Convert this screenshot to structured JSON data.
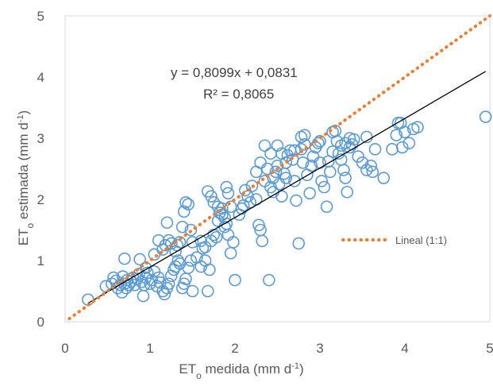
{
  "chart_data": {
    "type": "scatter",
    "xlabel": {
      "main": "ET",
      "sub": "o",
      "rest": " medida (mm d",
      "sup": "-1",
      "close": ")"
    },
    "ylabel": {
      "main": "ET",
      "sub": "o",
      "rest": " estimada (mm d",
      "sup": "-1",
      "close": ")"
    },
    "xlim": [
      0,
      5
    ],
    "ylim": [
      0,
      5
    ],
    "xticks": [
      "0",
      "1",
      "2",
      "3",
      "4",
      "5"
    ],
    "yticks": [
      "0",
      "1",
      "2",
      "3",
      "4",
      "5"
    ],
    "grid": false,
    "marker_color": "#5b9bd5",
    "trendline": {
      "slope": 0.8099,
      "intercept": 0.0831,
      "color": "#000000",
      "equation": "y = 0,8099x + 0,0831",
      "r2": "R² = 0,8065"
    },
    "reference_line": {
      "name": "Lineal (1:1)",
      "slope": 1,
      "intercept": 0,
      "color": "#ed7d31"
    },
    "legend_placement": "center-right",
    "points": [
      [
        0.27,
        0.36
      ],
      [
        0.48,
        0.58
      ],
      [
        0.55,
        0.62
      ],
      [
        0.57,
        0.72
      ],
      [
        0.6,
        0.67
      ],
      [
        0.62,
        0.55
      ],
      [
        0.65,
        0.6
      ],
      [
        0.67,
        0.48
      ],
      [
        0.68,
        0.74
      ],
      [
        0.7,
        0.62
      ],
      [
        0.72,
        0.55
      ],
      [
        0.73,
        0.68
      ],
      [
        0.75,
        0.6
      ],
      [
        0.78,
        0.66
      ],
      [
        0.8,
        0.72
      ],
      [
        0.82,
        0.6
      ],
      [
        0.85,
        0.7
      ],
      [
        0.87,
        0.78
      ],
      [
        0.9,
        0.65
      ],
      [
        0.92,
        0.42
      ],
      [
        0.93,
        0.6
      ],
      [
        0.95,
        0.72
      ],
      [
        0.97,
        0.8
      ],
      [
        1.0,
        0.62
      ],
      [
        1.02,
        0.68
      ],
      [
        1.05,
        0.82
      ],
      [
        1.08,
        0.58
      ],
      [
        1.1,
        0.72
      ],
      [
        1.12,
        0.64
      ],
      [
        1.15,
        0.5
      ],
      [
        1.17,
        0.45
      ],
      [
        1.2,
        0.55
      ],
      [
        1.22,
        0.62
      ],
      [
        1.25,
        0.75
      ],
      [
        1.28,
        0.85
      ],
      [
        1.3,
        0.9
      ],
      [
        1.33,
        1.0
      ],
      [
        1.35,
        0.95
      ],
      [
        1.38,
        0.55
      ],
      [
        1.4,
        0.62
      ],
      [
        1.42,
        0.7
      ],
      [
        1.45,
        0.88
      ],
      [
        1.48,
        1.0
      ],
      [
        1.5,
        0.5
      ],
      [
        0.7,
        1.03
      ],
      [
        0.88,
        1.02
      ],
      [
        0.95,
        0.88
      ],
      [
        1.05,
        1.1
      ],
      [
        1.1,
        1.33
      ],
      [
        1.15,
        1.18
      ],
      [
        1.18,
        1.25
      ],
      [
        1.2,
        1.62
      ],
      [
        1.22,
        1.33
      ],
      [
        1.25,
        1.28
      ],
      [
        1.3,
        1.15
      ],
      [
        1.32,
        1.25
      ],
      [
        1.35,
        1.3
      ],
      [
        1.38,
        1.55
      ],
      [
        1.4,
        1.8
      ],
      [
        1.42,
        1.95
      ],
      [
        1.45,
        1.92
      ],
      [
        1.48,
        1.5
      ],
      [
        1.5,
        1.3
      ],
      [
        1.55,
        1.05
      ],
      [
        1.6,
        0.9
      ],
      [
        1.62,
        1.2
      ],
      [
        1.65,
        1.0
      ],
      [
        1.68,
        0.5
      ],
      [
        1.7,
        0.85
      ],
      [
        1.72,
        1.32
      ],
      [
        1.75,
        1.42
      ],
      [
        1.78,
        1.38
      ],
      [
        1.8,
        1.65
      ],
      [
        1.82,
        1.78
      ],
      [
        1.85,
        1.85
      ],
      [
        1.88,
        1.7
      ],
      [
        1.9,
        1.6
      ],
      [
        1.92,
        1.42
      ],
      [
        1.95,
        1.12
      ],
      [
        1.98,
        1.3
      ],
      [
        1.6,
        1.32
      ],
      [
        1.65,
        1.22
      ],
      [
        1.68,
        2.13
      ],
      [
        1.72,
        2.05
      ],
      [
        1.75,
        1.95
      ],
      [
        1.8,
        1.88
      ],
      [
        1.85,
        1.75
      ],
      [
        1.88,
        1.55
      ],
      [
        1.9,
        2.2
      ],
      [
        1.92,
        2.1
      ],
      [
        1.95,
        1.88
      ],
      [
        2.0,
        0.68
      ],
      [
        2.05,
        1.75
      ],
      [
        2.08,
        1.85
      ],
      [
        2.1,
        1.9
      ],
      [
        2.12,
        2.15
      ],
      [
        2.15,
        2.05
      ],
      [
        2.18,
        1.95
      ],
      [
        2.2,
        2.22
      ],
      [
        2.25,
        2.0
      ],
      [
        2.28,
        1.58
      ],
      [
        2.3,
        1.5
      ],
      [
        2.32,
        1.32
      ],
      [
        2.35,
        2.3
      ],
      [
        2.38,
        2.5
      ],
      [
        2.4,
        0.68
      ],
      [
        2.42,
        2.2
      ],
      [
        2.45,
        2.35
      ],
      [
        2.48,
        2.45
      ],
      [
        2.5,
        2.55
      ],
      [
        2.52,
        2.25
      ],
      [
        2.55,
        2.05
      ],
      [
        2.58,
        2.42
      ],
      [
        2.6,
        2.6
      ],
      [
        2.62,
        2.72
      ],
      [
        2.65,
        2.8
      ],
      [
        2.68,
        2.65
      ],
      [
        2.7,
        2.3
      ],
      [
        2.72,
        1.98
      ],
      [
        2.75,
        1.28
      ],
      [
        2.35,
        2.88
      ],
      [
        2.5,
        2.88
      ],
      [
        2.55,
        2.75
      ],
      [
        2.78,
        2.82
      ],
      [
        2.8,
        2.6
      ],
      [
        2.82,
        2.9
      ],
      [
        2.85,
        2.4
      ],
      [
        2.88,
        2.1
      ],
      [
        2.9,
        2.55
      ],
      [
        2.92,
        2.7
      ],
      [
        2.95,
        2.85
      ],
      [
        2.98,
        2.92
      ],
      [
        3.0,
        2.6
      ],
      [
        3.02,
        2.3
      ],
      [
        3.05,
        2.2
      ],
      [
        3.08,
        1.88
      ],
      [
        3.1,
        2.62
      ],
      [
        3.12,
        2.45
      ],
      [
        3.15,
        2.78
      ],
      [
        3.18,
        3.12
      ],
      [
        3.2,
        2.95
      ],
      [
        3.22,
        2.75
      ],
      [
        3.25,
        2.65
      ],
      [
        3.28,
        2.48
      ],
      [
        3.3,
        2.35
      ],
      [
        3.32,
        2.12
      ],
      [
        3.35,
        2.85
      ],
      [
        3.38,
        2.9
      ],
      [
        3.4,
        2.98
      ],
      [
        3.45,
        2.7
      ],
      [
        2.78,
        3.02
      ],
      [
        2.82,
        3.05
      ],
      [
        3.0,
        2.95
      ],
      [
        3.15,
        3.1
      ],
      [
        3.25,
        2.88
      ],
      [
        3.3,
        2.92
      ],
      [
        3.35,
        3.0
      ],
      [
        3.5,
        2.6
      ],
      [
        3.55,
        2.48
      ],
      [
        3.6,
        2.55
      ],
      [
        3.62,
        2.45
      ],
      [
        3.65,
        2.82
      ],
      [
        3.55,
        3.02
      ],
      [
        3.75,
        2.35
      ],
      [
        3.85,
        2.82
      ],
      [
        3.9,
        3.05
      ],
      [
        3.92,
        3.25
      ],
      [
        3.95,
        3.25
      ],
      [
        3.97,
        2.85
      ],
      [
        4.0,
        3.1
      ],
      [
        4.05,
        2.92
      ],
      [
        4.1,
        3.15
      ],
      [
        4.15,
        3.18
      ],
      [
        4.95,
        3.35
      ],
      [
        2.42,
        2.75
      ],
      [
        2.25,
        2.45
      ],
      [
        2.6,
        2.35
      ],
      [
        2.7,
        2.8
      ],
      [
        2.3,
        2.6
      ],
      [
        2.45,
        2.12
      ]
    ]
  }
}
